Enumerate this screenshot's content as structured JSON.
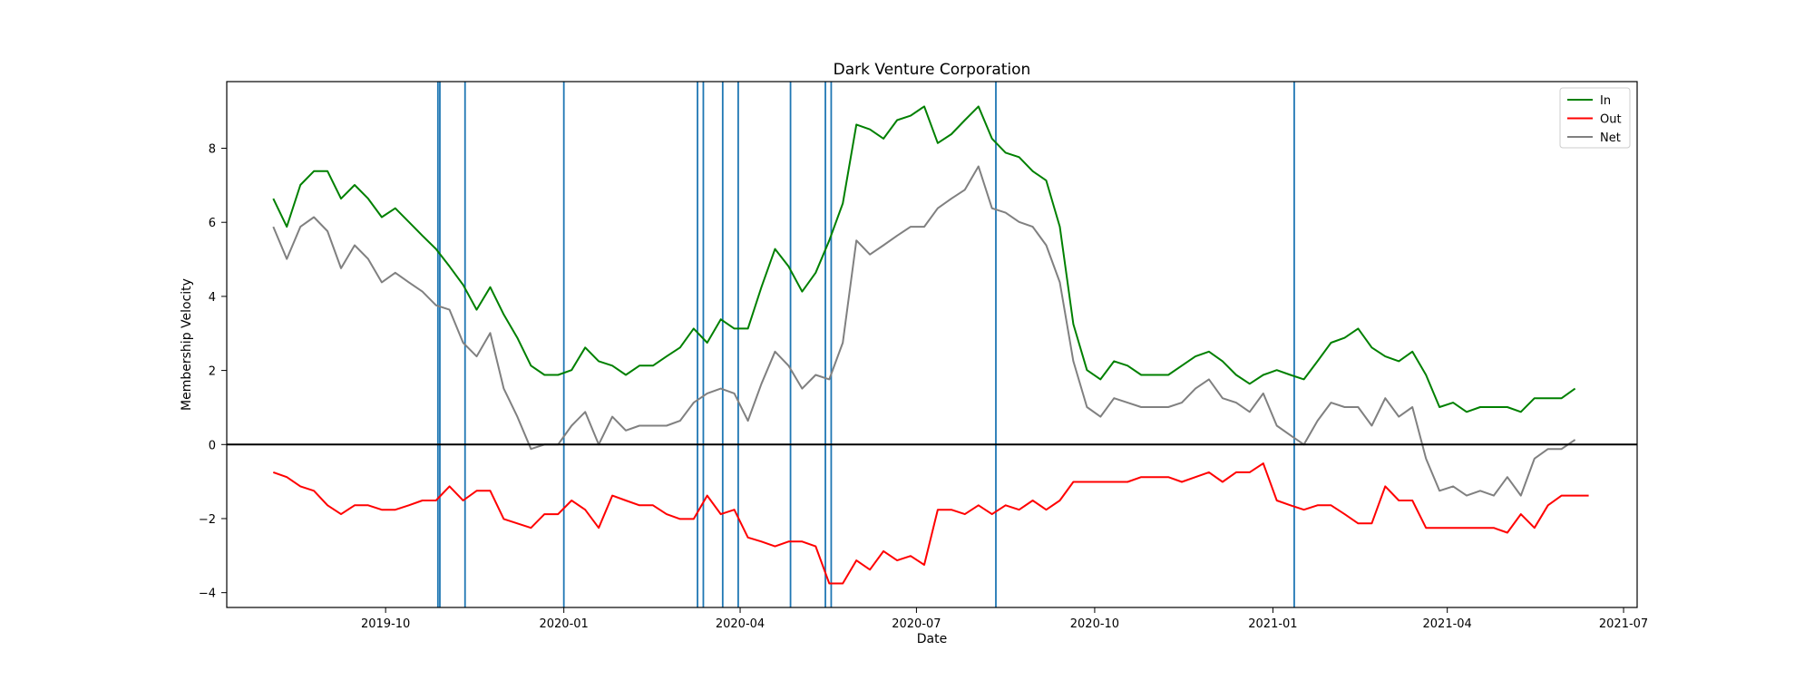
{
  "chart_data": {
    "type": "line",
    "title": "Dark Venture Corporation",
    "xlabel": "Date",
    "ylabel": "Membership Velocity",
    "xlim": [
      "2019-07-11",
      "2021-07-08"
    ],
    "ylim": [
      -4.4,
      9.8
    ],
    "x_ticks": [
      "2019-10-01",
      "2020-01-01",
      "2020-04-01",
      "2020-07-01",
      "2020-10-01",
      "2021-01-01",
      "2021-04-01",
      "2021-07-01"
    ],
    "x_tick_labels": [
      "2019-10",
      "2020-01",
      "2020-04",
      "2020-07",
      "2020-10",
      "2021-01",
      "2021-04",
      "2021-07"
    ],
    "y_ticks": [
      -4,
      -2,
      0,
      2,
      4,
      6,
      8
    ],
    "grid": false,
    "legend": "top-right",
    "x_start": "2019-08-04",
    "x_step_days": 7,
    "series": [
      {
        "name": "In",
        "color": "#008000",
        "values": [
          6.64,
          5.88,
          7.01,
          7.38,
          7.38,
          6.64,
          7.01,
          6.64,
          6.14,
          6.38,
          6.01,
          5.64,
          5.28,
          4.81,
          4.31,
          3.64,
          4.25,
          3.51,
          2.88,
          2.13,
          1.88,
          1.88,
          2.01,
          2.62,
          2.25,
          2.13,
          1.88,
          2.13,
          2.13,
          2.38,
          2.62,
          3.13,
          2.75,
          3.38,
          3.13,
          3.13,
          4.25,
          5.28,
          4.81,
          4.13,
          4.64,
          5.51,
          6.51,
          8.64,
          8.51,
          8.26,
          8.76,
          8.88,
          9.13,
          8.14,
          8.38,
          8.76,
          9.13,
          8.26,
          7.88,
          7.76,
          7.38,
          7.13,
          5.88,
          3.25,
          2.01,
          1.76,
          2.25,
          2.13,
          1.88,
          1.88,
          1.88,
          2.13,
          2.38,
          2.51,
          2.25,
          1.88,
          1.64,
          1.88,
          2.01,
          1.88,
          1.76,
          2.25,
          2.75,
          2.88,
          3.13,
          2.62,
          2.38,
          2.25,
          2.51,
          1.88,
          1.01,
          1.13,
          0.88,
          1.01,
          1.01,
          1.01,
          0.88,
          1.25,
          1.25,
          1.25,
          1.51
        ]
      },
      {
        "name": "Out",
        "color": "#ff0000",
        "values": [
          -0.75,
          -0.88,
          -1.13,
          -1.25,
          -1.64,
          -1.88,
          -1.64,
          -1.64,
          -1.76,
          -1.76,
          -1.64,
          -1.51,
          -1.51,
          -1.13,
          -1.51,
          -1.25,
          -1.25,
          -2.01,
          -2.13,
          -2.25,
          -1.88,
          -1.88,
          -1.51,
          -1.76,
          -2.25,
          -1.38,
          -1.51,
          -1.64,
          -1.64,
          -1.88,
          -2.01,
          -2.01,
          -1.38,
          -1.88,
          -1.76,
          -2.51,
          -2.62,
          -2.75,
          -2.62,
          -2.62,
          -2.75,
          -3.75,
          -3.75,
          -3.13,
          -3.38,
          -2.88,
          -3.13,
          -3.01,
          -3.25,
          -1.76,
          -1.76,
          -1.88,
          -1.64,
          -1.88,
          -1.64,
          -1.76,
          -1.51,
          -1.76,
          -1.51,
          -1.01,
          -1.01,
          -1.01,
          -1.01,
          -1.01,
          -0.88,
          -0.88,
          -0.88,
          -1.01,
          -0.88,
          -0.75,
          -1.01,
          -0.75,
          -0.75,
          -0.51,
          -1.51,
          -1.64,
          -1.76,
          -1.64,
          -1.64,
          -1.88,
          -2.13,
          -2.13,
          -1.13,
          -1.51,
          -1.51,
          -2.25,
          -2.25,
          -2.25,
          -2.25,
          -2.25,
          -2.25,
          -2.38,
          -1.88,
          -2.25,
          -1.64,
          -1.38,
          -1.38,
          -1.38
        ]
      },
      {
        "name": "Net",
        "color": "#808080",
        "values": [
          5.88,
          5.01,
          5.88,
          6.14,
          5.76,
          4.76,
          5.38,
          5.01,
          4.38,
          4.64,
          4.38,
          4.13,
          3.76,
          3.64,
          2.75,
          2.38,
          3.01,
          1.51,
          0.75,
          -0.12,
          0.0,
          0.0,
          0.51,
          0.88,
          0.0,
          0.75,
          0.38,
          0.51,
          0.51,
          0.51,
          0.64,
          1.13,
          1.38,
          1.51,
          1.38,
          0.64,
          1.64,
          2.51,
          2.13,
          1.51,
          1.88,
          1.76,
          2.75,
          5.51,
          5.13,
          5.38,
          5.64,
          5.88,
          5.88,
          6.38,
          6.64,
          6.88,
          7.51,
          6.38,
          6.26,
          6.01,
          5.88,
          5.38,
          4.38,
          2.25,
          1.01,
          0.75,
          1.25,
          1.13,
          1.01,
          1.01,
          1.01,
          1.13,
          1.51,
          1.76,
          1.25,
          1.13,
          0.88,
          1.38,
          0.51,
          0.25,
          0.0,
          0.64,
          1.13,
          1.01,
          1.01,
          0.51,
          1.25,
          0.75,
          1.01,
          -0.38,
          -1.25,
          -1.13,
          -1.38,
          -1.25,
          -1.38,
          -0.88,
          -1.38,
          -0.38,
          -0.12,
          -0.12,
          0.13
        ]
      }
    ],
    "event_lines": {
      "color": "#1f77b4",
      "dates": [
        "2019-10-28",
        "2019-10-29",
        "2019-11-11",
        "2020-01-01",
        "2020-03-10",
        "2020-03-13",
        "2020-03-23",
        "2020-03-31",
        "2020-04-27",
        "2020-05-15",
        "2020-05-18",
        "2020-08-11",
        "2021-01-12"
      ]
    },
    "hline": {
      "y": 0,
      "color": "#000000"
    }
  }
}
